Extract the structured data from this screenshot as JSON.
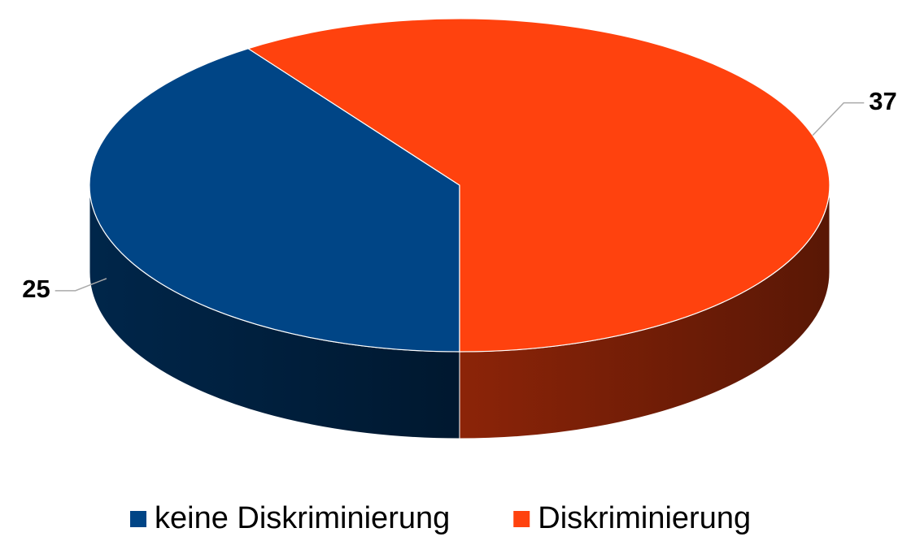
{
  "chart_data": {
    "type": "pie",
    "categories": [
      "keine Diskriminierung",
      "Diskriminierung"
    ],
    "values": [
      25,
      37
    ],
    "colors": [
      "#004586",
      "#ff420e"
    ],
    "legend": "bottom"
  }
}
